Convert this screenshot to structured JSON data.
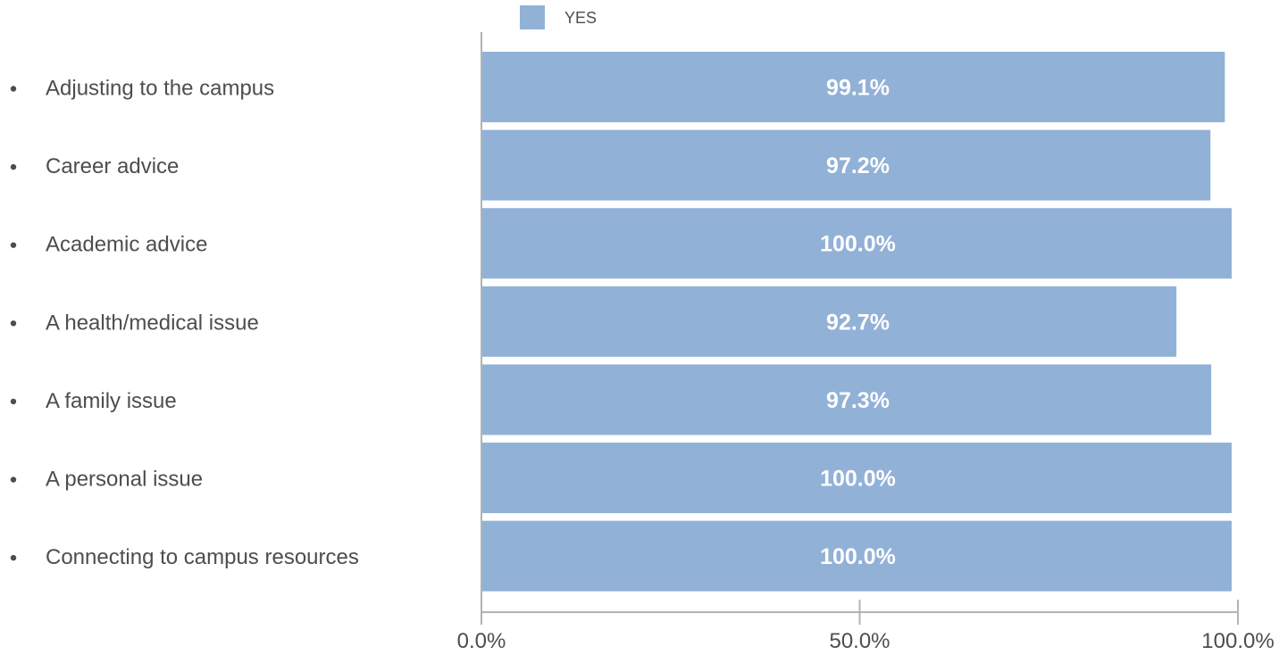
{
  "chart_data": {
    "type": "bar",
    "orientation": "horizontal",
    "categories": [
      "Adjusting to the campus",
      "Career advice",
      "Academic advice",
      "A health/medical issue",
      "A family issue",
      "A personal issue",
      "Connecting to campus resources"
    ],
    "series": [
      {
        "name": "YES",
        "values": [
          99.1,
          97.2,
          100.0,
          92.7,
          97.3,
          100.0,
          100.0
        ],
        "labels": [
          "99.1%",
          "97.2%",
          "100.0%",
          "92.7%",
          "97.3%",
          "100.0%",
          "100.0%"
        ],
        "color": "#92b1d7"
      }
    ],
    "xlim": [
      0,
      100
    ],
    "x_ticks": [
      0,
      50,
      100
    ],
    "x_tick_labels": [
      "0.0%",
      "50.0%",
      "100.0%"
    ],
    "title": "",
    "xlabel": "",
    "ylabel": "",
    "legend": {
      "position": "top",
      "entries": [
        "YES"
      ]
    },
    "grid": false,
    "category_bullet": "•",
    "colors": {
      "bar": "#92b1d7",
      "axis": "#b3b3b3",
      "text": "#4d4d4d",
      "bar_text": "#ffffff"
    }
  }
}
